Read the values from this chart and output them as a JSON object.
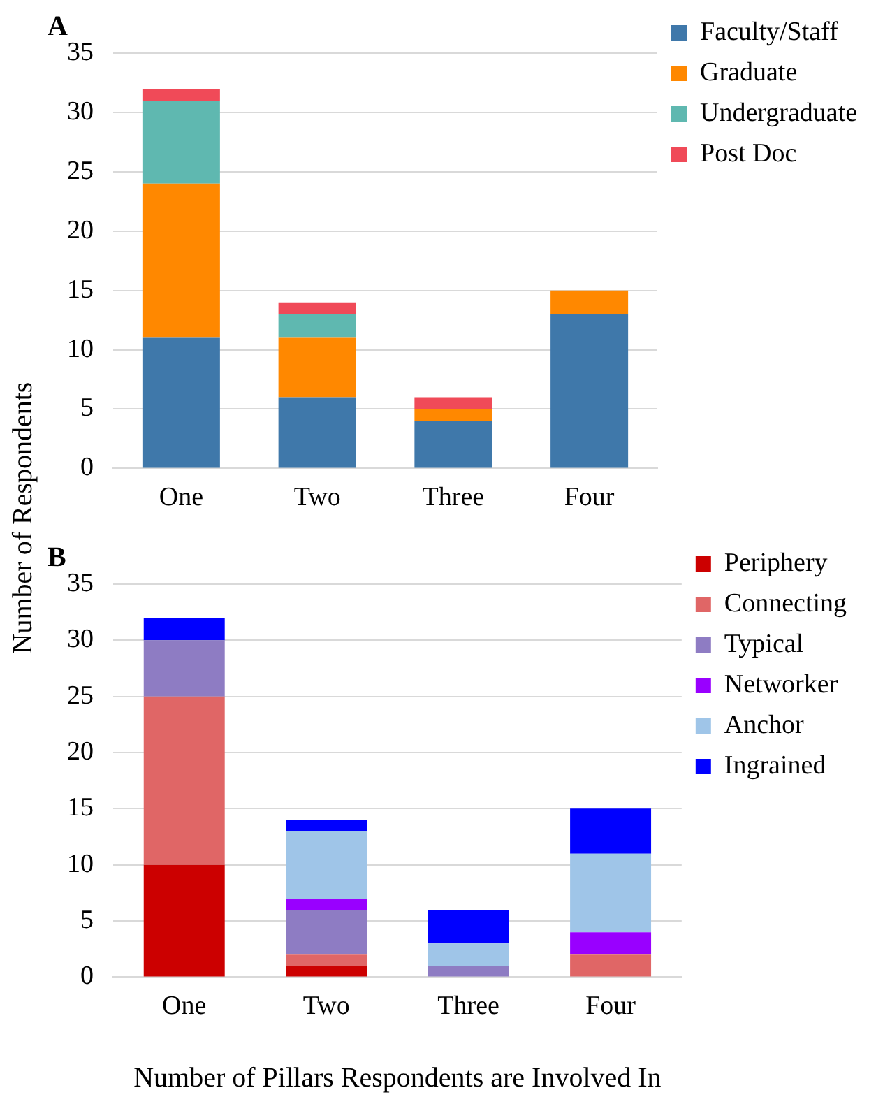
{
  "chart_data": [
    {
      "type": "bar",
      "title": "A",
      "ylabel": "Number of Respondents",
      "categories": [
        "One",
        "Two",
        "Three",
        "Four"
      ],
      "stacked": true,
      "grid": "y",
      "legend": "top right",
      "ylim": [
        0,
        35
      ],
      "yticks": [
        0,
        5,
        10,
        15,
        20,
        25,
        30,
        35
      ],
      "series": [
        {
          "name": "Faculty/Staff",
          "color": "#3f78aa",
          "values": [
            11,
            6,
            4,
            13
          ]
        },
        {
          "name": "Graduate",
          "color": "#ff8800",
          "values": [
            13,
            5,
            1,
            2
          ]
        },
        {
          "name": "Undergraduate",
          "color": "#5fb8b0",
          "values": [
            7,
            2,
            0,
            0
          ]
        },
        {
          "name": "Post Doc",
          "color": "#f04a58",
          "values": [
            1,
            1,
            1,
            0
          ]
        }
      ]
    },
    {
      "type": "bar",
      "title": "B",
      "xlabel": "Number of Pillars Respondents are Involved In",
      "categories": [
        "One",
        "Two",
        "Three",
        "Four"
      ],
      "stacked": true,
      "grid": "y",
      "legend": "top right",
      "ylim": [
        0,
        35
      ],
      "yticks": [
        0,
        5,
        10,
        15,
        20,
        25,
        30,
        35
      ],
      "series": [
        {
          "name": "Periphery",
          "color": "#cc0000",
          "values": [
            10,
            1,
            0,
            0
          ]
        },
        {
          "name": "Connecting",
          "color": "#e06666",
          "values": [
            15,
            1,
            0,
            2
          ]
        },
        {
          "name": "Typical",
          "color": "#8e7cc3",
          "values": [
            5,
            4,
            1,
            0
          ]
        },
        {
          "name": "Networker",
          "color": "#9900ff",
          "values": [
            0,
            1,
            0,
            2
          ]
        },
        {
          "name": "Anchor",
          "color": "#9fc5e8",
          "values": [
            0,
            6,
            2,
            7
          ]
        },
        {
          "name": "Ingrained",
          "color": "#0000ff",
          "values": [
            2,
            1,
            3,
            4
          ]
        }
      ]
    }
  ]
}
